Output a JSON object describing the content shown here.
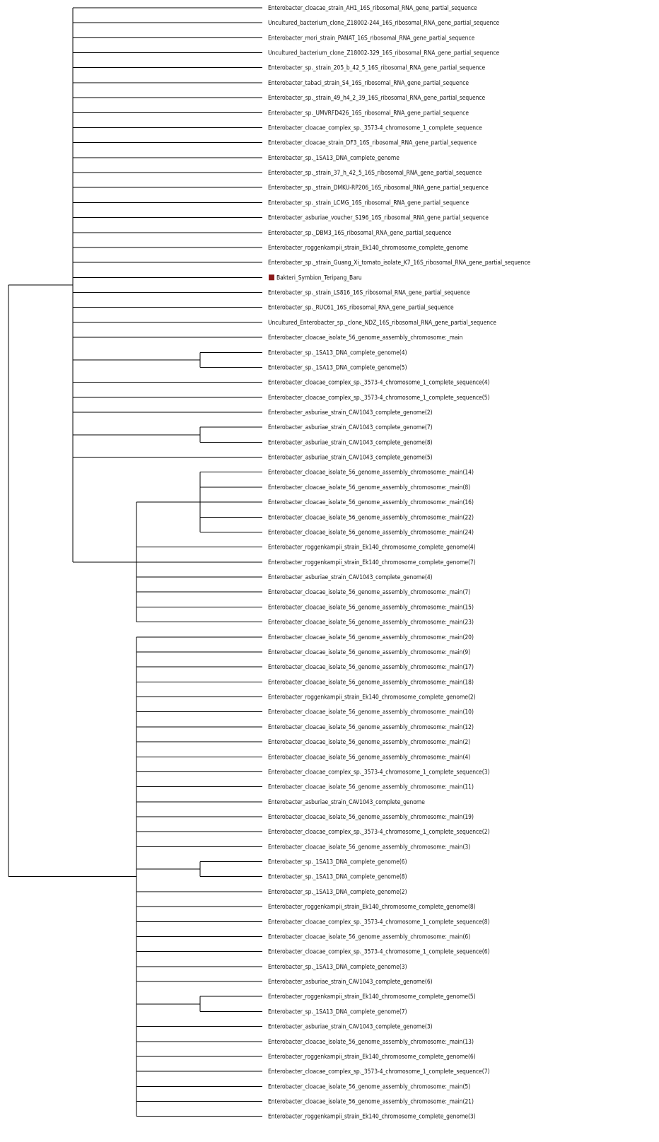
{
  "tree": {
    "highlight_color": "#8b1a1a",
    "line_color": "#000000",
    "rows": [
      {
        "id": "l01",
        "label": "Enterobacter_cloacae_strain_AH1_16S_ribosomal_RNA_gene_partial_sequence"
      },
      {
        "id": "l02",
        "label": "Uncultured_bacterium_clone_Z18002-244_16S_ribosomal_RNA_gene_partial_sequence"
      },
      {
        "id": "l03",
        "label": "Enterobacter_mori_strain_PANAT_16S_ribosomal_RNA_gene_partial_sequence"
      },
      {
        "id": "l04",
        "label": "Uncultured_bacterium_clone_Z18002-329_16S_ribosomal_RNA_gene_partial_sequence"
      },
      {
        "id": "l05",
        "label": "Enterobacter_sp._strain_205_b_42_5_16S_ribosomal_RNA_gene_partial_sequence"
      },
      {
        "id": "l06",
        "label": "Enterobacter_tabaci_strain_S4_16S_ribosomal_RNA_gene_partial_sequence"
      },
      {
        "id": "l07",
        "label": "Enterobacter_sp._strain_49_h4_2_39_16S_ribosomal_RNA_gene_partial_sequence"
      },
      {
        "id": "l08",
        "label": "Enterobacter_sp._UMVRFD426_16S_ribosomal_RNA_gene_partial_sequence"
      },
      {
        "id": "l09",
        "label": "Enterobacter_cloacae_complex_sp._3573-4_chromosome_1_complete_sequence"
      },
      {
        "id": "l10",
        "label": "Enterobacter_cloacae_strain_DF3_16S_ribosomal_RNA_gene_partial_sequence"
      },
      {
        "id": "l11",
        "label": "Enterobacter_sp._1SA13_DNA_complete_genome"
      },
      {
        "id": "l12",
        "label": "Enterobacter_sp._strain_37_h_42_5_16S_ribosomal_RNA_gene_partial_sequence"
      },
      {
        "id": "l13",
        "label": "Enterobacter_sp._strain_DMKU-RP206_16S_ribosomal_RNA_gene_partial_sequence"
      },
      {
        "id": "l14",
        "label": "Enterobacter_sp._strain_LCMG_16S_ribosomal_RNA_gene_partial_sequence"
      },
      {
        "id": "l15",
        "label": "Enterobacter_asburiae_voucher_S196_16S_ribosomal_RNA_gene_partial_sequence"
      },
      {
        "id": "l16",
        "label": "Enterobacter_sp._DBM3_16S_ribosomal_RNA_gene_partial_sequence"
      },
      {
        "id": "l17",
        "label": "Enterobacter_roggenkampii_strain_Ek140_chromosome_complete_genome"
      },
      {
        "id": "l18",
        "label": "Enterobacter_sp._strain_Guang_Xi_tomato_isolate_K7_16S_ribosomal_RNA_gene_partial_sequence"
      },
      {
        "id": "l19",
        "label": "Bakteri_Symbion_Teripang_Baru",
        "marker": true
      },
      {
        "id": "l20",
        "label": "Enterobacter_sp._strain_LS816_16S_ribosomal_RNA_gene_partial_sequence"
      },
      {
        "id": "l21",
        "label": "Enterobacter_sp._RUC61_16S_ribosomal_RNA_gene_partial_sequence"
      },
      {
        "id": "l22",
        "label": "Uncultured_Enterobacter_sp._clone_NDZ_16S_ribosomal_RNA_gene_partial_sequence"
      },
      {
        "id": "l23",
        "label": "Enterobacter_cloacae_isolate_56_genome_assembly_chromosome:_main"
      },
      {
        "id": "l24",
        "label": "Enterobacter_sp._1SA13_DNA_complete_genome(4)"
      },
      {
        "id": "l25",
        "label": "Enterobacter_sp._1SA13_DNA_complete_genome(5)"
      },
      {
        "id": "l26",
        "label": "Enterobacter_cloacae_complex_sp._3573-4_chromosome_1_complete_sequence(4)"
      },
      {
        "id": "l27",
        "label": "Enterobacter_cloacae_complex_sp._3573-4_chromosome_1_complete_sequence(5)"
      },
      {
        "id": "l28",
        "label": "Enterobacter_asburiae_strain_CAV1043_complete_genome(2)"
      },
      {
        "id": "l29",
        "label": "Enterobacter_asburiae_strain_CAV1043_complete_genome(7)"
      },
      {
        "id": "l30",
        "label": "Enterobacter_asburiae_strain_CAV1043_complete_genome(8)"
      },
      {
        "id": "l31",
        "label": "Enterobacter_asburiae_strain_CAV1043_complete_genome(5)"
      },
      {
        "id": "l32",
        "label": "Enterobacter_cloacae_isolate_56_genome_assembly_chromosome:_main(14)"
      },
      {
        "id": "l33",
        "label": "Enterobacter_cloacae_isolate_56_genome_assembly_chromosome:_main(8)"
      },
      {
        "id": "l34",
        "label": "Enterobacter_cloacae_isolate_56_genome_assembly_chromosome:_main(16)"
      },
      {
        "id": "l35",
        "label": "Enterobacter_cloacae_isolate_56_genome_assembly_chromosome:_main(22)"
      },
      {
        "id": "l36",
        "label": "Enterobacter_cloacae_isolate_56_genome_assembly_chromosome:_main(24)"
      },
      {
        "id": "l37",
        "label": "Enterobacter_roggenkampii_strain_Ek140_chromosome_complete_genome(4)"
      },
      {
        "id": "l38",
        "label": "Enterobacter_roggenkampii_strain_Ek140_chromosome_complete_genome(7)"
      },
      {
        "id": "l39",
        "label": "Enterobacter_asburiae_strain_CAV1043_complete_genome(4)"
      },
      {
        "id": "l40",
        "label": "Enterobacter_cloacae_isolate_56_genome_assembly_chromosome:_main(7)"
      },
      {
        "id": "l41",
        "label": "Enterobacter_cloacae_isolate_56_genome_assembly_chromosome:_main(15)"
      },
      {
        "id": "l42",
        "label": "Enterobacter_cloacae_isolate_56_genome_assembly_chromosome:_main(23)"
      },
      {
        "id": "l43",
        "label": "Enterobacter_cloacae_isolate_56_genome_assembly_chromosome:_main(20)"
      },
      {
        "id": "l44",
        "label": "Enterobacter_cloacae_isolate_56_genome_assembly_chromosome:_main(9)"
      },
      {
        "id": "l45",
        "label": "Enterobacter_cloacae_isolate_56_genome_assembly_chromosome:_main(17)"
      },
      {
        "id": "l46",
        "label": "Enterobacter_cloacae_isolate_56_genome_assembly_chromosome:_main(18)"
      },
      {
        "id": "l47",
        "label": "Enterobacter_roggenkampii_strain_Ek140_chromosome_complete_genome(2)"
      },
      {
        "id": "l48",
        "label": "Enterobacter_cloacae_isolate_56_genome_assembly_chromosome:_main(10)"
      },
      {
        "id": "l49",
        "label": "Enterobacter_cloacae_isolate_56_genome_assembly_chromosome:_main(12)"
      },
      {
        "id": "l50",
        "label": "Enterobacter_cloacae_isolate_56_genome_assembly_chromosome:_main(2)"
      },
      {
        "id": "l51",
        "label": "Enterobacter_cloacae_isolate_56_genome_assembly_chromosome:_main(4)"
      },
      {
        "id": "l52",
        "label": "Enterobacter_cloacae_complex_sp._3573-4_chromosome_1_complete_sequence(3)"
      },
      {
        "id": "l53",
        "label": "Enterobacter_cloacae_isolate_56_genome_assembly_chromosome:_main(11)"
      },
      {
        "id": "l54",
        "label": "Enterobacter_asburiae_strain_CAV1043_complete_genome"
      },
      {
        "id": "l55",
        "label": "Enterobacter_cloacae_isolate_56_genome_assembly_chromosome:_main(19)"
      },
      {
        "id": "l56",
        "label": "Enterobacter_cloacae_complex_sp._3573-4_chromosome_1_complete_sequence(2)"
      },
      {
        "id": "l57",
        "label": "Enterobacter_cloacae_isolate_56_genome_assembly_chromosome:_main(3)"
      },
      {
        "id": "l58",
        "label": "Enterobacter_sp._1SA13_DNA_complete_genome(6)"
      },
      {
        "id": "l59",
        "label": "Enterobacter_sp._1SA13_DNA_complete_genome(8)"
      },
      {
        "id": "l60",
        "label": "Enterobacter_sp._1SA13_DNA_complete_genome(2)"
      },
      {
        "id": "l61",
        "label": "Enterobacter_roggenkampii_strain_Ek140_chromosome_complete_genome(8)"
      },
      {
        "id": "l62",
        "label": "Enterobacter_cloacae_complex_sp._3573-4_chromosome_1_complete_sequence(8)"
      },
      {
        "id": "l63",
        "label": "Enterobacter_cloacae_isolate_56_genome_assembly_chromosome:_main(6)"
      },
      {
        "id": "l64",
        "label": "Enterobacter_cloacae_complex_sp._3573-4_chromosome_1_complete_sequence(6)"
      },
      {
        "id": "l65",
        "label": "Enterobacter_sp._1SA13_DNA_complete_genome(3)"
      },
      {
        "id": "l66",
        "label": "Enterobacter_asburiae_strain_CAV1043_complete_genome(6)"
      },
      {
        "id": "l67",
        "label": "Enterobacter_roggenkampii_strain_Ek140_chromosome_complete_genome(5)"
      },
      {
        "id": "l68",
        "label": "Enterobacter_sp._1SA13_DNA_complete_genome(7)"
      },
      {
        "id": "l69",
        "label": "Enterobacter_asburiae_strain_CAV1043_complete_genome(3)"
      },
      {
        "id": "l70",
        "label": "Enterobacter_cloacae_isolate_56_genome_assembly_chromosome:_main(13)"
      },
      {
        "id": "l71",
        "label": "Enterobacter_roggenkampii_strain_Ek140_chromosome_complete_genome(6)"
      },
      {
        "id": "l72",
        "label": "Enterobacter_cloacae_complex_sp._3573-4_chromosome_1_complete_sequence(7)"
      },
      {
        "id": "l73",
        "label": "Enterobacter_cloacae_isolate_56_genome_assembly_chromosome:_main(5)"
      },
      {
        "id": "l74",
        "label": "Enterobacter_cloacae_isolate_56_genome_assembly_chromosome:_main(21)"
      },
      {
        "id": "l75",
        "label": "Enterobacter_roggenkampii_strain_Ek140_chromosome_complete_genome(3)"
      }
    ],
    "structure": {
      "name": "root",
      "children": [
        {
          "name": "clade-upper",
          "children": [
            "l01",
            "l02",
            "l03",
            "l04",
            "l05",
            "l06",
            "l07",
            "l08",
            "l09",
            "l10",
            "l11",
            "l12",
            "l13",
            "l14",
            "l15",
            "l16",
            "l17",
            "l18",
            "l19",
            "l20",
            "l21",
            "l22",
            "l23",
            {
              "name": "clade-1sa13-4-5",
              "children": [
                "l24",
                "l25"
              ]
            },
            "l26",
            "l27",
            "l28",
            {
              "name": "clade-cav1043-7-8",
              "children": [
                "l29",
                "l30"
              ]
            },
            "l31",
            {
              "name": "clade-chromosome-main",
              "children": [
                {
                  "name": "clade-main-subgroup",
                  "children": [
                    "l32",
                    "l33",
                    "l34",
                    "l35",
                    "l36"
                  ]
                },
                "l37",
                "l38",
                "l39",
                "l40",
                "l41",
                "l42"
              ]
            }
          ]
        },
        {
          "name": "clade-lower",
          "children": [
            "l43",
            "l44",
            "l45",
            "l46",
            "l47",
            "l48",
            "l49",
            "l50",
            "l51",
            "l52",
            "l53",
            "l54",
            "l55",
            "l56",
            "l57",
            {
              "name": "clade-1sa13-6-8",
              "children": [
                "l58",
                "l59"
              ]
            },
            "l60",
            "l61",
            "l62",
            "l63",
            "l64",
            "l65",
            "l66",
            {
              "name": "clade-ek140-5-1sa13-7",
              "children": [
                "l67",
                "l68"
              ]
            },
            "l69",
            "l70",
            "l71",
            "l72",
            "l73",
            "l74",
            "l75"
          ]
        }
      ]
    }
  }
}
